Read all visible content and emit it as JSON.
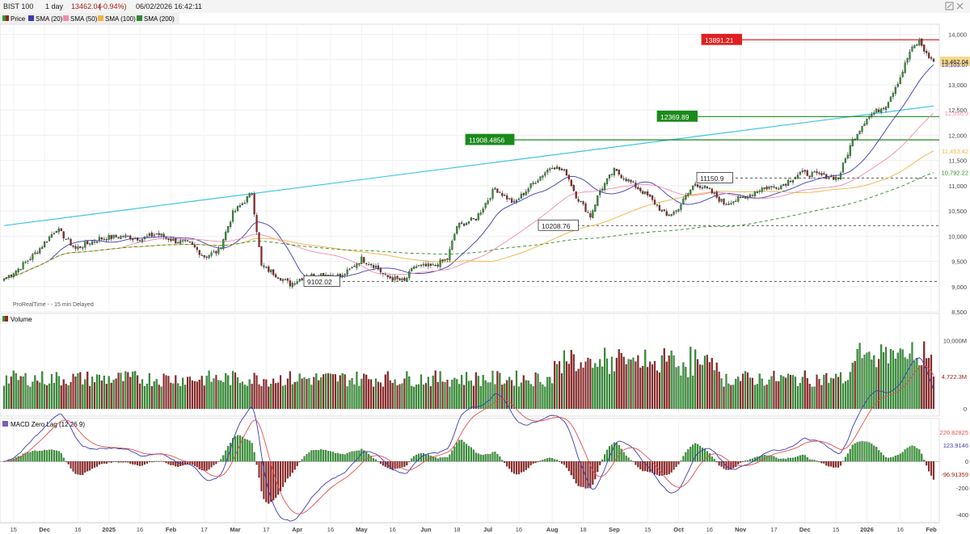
{
  "header": {
    "instrument": "BIST 100",
    "interval": "1 day",
    "last": "13462.04",
    "change": "(-0.94%)",
    "datetime": "06/02/2026 16:42:11"
  },
  "colors": {
    "up": "#2ca02c",
    "down": "#a11d1d",
    "sma20": "#3b3bb3",
    "sma50": "#f08cab",
    "sma100": "#f5b142",
    "sma200": "#2a8a2a",
    "trendline": "#3fc4e3",
    "resistance": "#e02020",
    "support": "#1a8a1a",
    "macd": "#3b3bb3",
    "signal": "#e05050"
  },
  "legend": [
    {
      "label": "Price",
      "icon": "price-swatch-icon"
    },
    {
      "label": "SMA (20)",
      "icon": "sma20-swatch-icon"
    },
    {
      "label": "SMA (50)",
      "icon": "sma50-swatch-icon"
    },
    {
      "label": "SMA (100)",
      "icon": "sma100-swatch-icon"
    },
    {
      "label": "SMA (200)",
      "icon": "sma200-swatch-icon"
    }
  ],
  "watermark": "ProRealTime -  - 15 min Delayed",
  "volume_panel": {
    "title": "Volume"
  },
  "macd_panel": {
    "title": "MACD Zero Lag (12 26 9)"
  },
  "chart_data": [
    {
      "type": "candlestick",
      "panel": "price",
      "ylim": [
        8500,
        14200
      ],
      "y_ticks": [
        "14,000",
        "13,500",
        "13,000",
        "12,500",
        "12,000",
        "11,500",
        "11,000",
        "10,500",
        "10,000",
        "9,500",
        "9,000",
        "8,500"
      ],
      "x_ticks": [
        "15",
        "Dec",
        "16",
        "2025",
        "16",
        "Feb",
        "17",
        "Mar",
        "17",
        "Apr",
        "16",
        "May",
        "16",
        "Jun",
        "18",
        "Jul",
        "16",
        "Aug",
        "18",
        "Sep",
        "15",
        "Oct",
        "16",
        "Nov",
        "17",
        "Dec",
        "15",
        "2026",
        "16",
        "Feb"
      ],
      "close_anchors": [
        [
          0,
          9150
        ],
        [
          6,
          9350
        ],
        [
          14,
          9700
        ],
        [
          22,
          10150
        ],
        [
          30,
          9750
        ],
        [
          40,
          9950
        ],
        [
          50,
          10000
        ],
        [
          58,
          9950
        ],
        [
          64,
          10050
        ],
        [
          72,
          9900
        ],
        [
          78,
          9850
        ],
        [
          84,
          9600
        ],
        [
          90,
          9700
        ],
        [
          96,
          10450
        ],
        [
          103,
          10800
        ],
        [
          104,
          10850
        ],
        [
          108,
          9400
        ],
        [
          112,
          9300
        ],
        [
          120,
          9050
        ],
        [
          126,
          9200
        ],
        [
          134,
          9250
        ],
        [
          142,
          9200
        ],
        [
          150,
          9550
        ],
        [
          156,
          9400
        ],
        [
          160,
          9200
        ],
        [
          168,
          9100
        ],
        [
          172,
          9400
        ],
        [
          180,
          9400
        ],
        [
          186,
          9550
        ],
        [
          190,
          10200
        ],
        [
          198,
          10350
        ],
        [
          206,
          10950
        ],
        [
          214,
          10650
        ],
        [
          222,
          11050
        ],
        [
          230,
          11400
        ],
        [
          236,
          11250
        ],
        [
          240,
          10800
        ],
        [
          246,
          10400
        ],
        [
          250,
          10900
        ],
        [
          256,
          11300
        ],
        [
          262,
          11100
        ],
        [
          270,
          10800
        ],
        [
          278,
          10400
        ],
        [
          282,
          10500
        ],
        [
          290,
          11050
        ],
        [
          296,
          10900
        ],
        [
          302,
          10650
        ],
        [
          310,
          10750
        ],
        [
          318,
          10950
        ],
        [
          326,
          11000
        ],
        [
          334,
          11250
        ],
        [
          344,
          11200
        ],
        [
          350,
          11150
        ],
        [
          356,
          11900
        ],
        [
          362,
          12350
        ],
        [
          370,
          12600
        ],
        [
          376,
          13150
        ],
        [
          380,
          13650
        ],
        [
          384,
          13870
        ],
        [
          387,
          13600
        ],
        [
          390,
          13462.04
        ]
      ],
      "series": [
        {
          "name": "SMA (20)",
          "last": "13,103.07"
        },
        {
          "name": "SMA (50)",
          "last": "12,056.9"
        },
        {
          "name": "SMA (100)",
          "last": "11,453.42"
        },
        {
          "name": "SMA (200)",
          "last": "10,792.22"
        }
      ],
      "last_price_label": "13,462.04",
      "levels": [
        {
          "label": "13891.21",
          "value": 13891.21,
          "kind": "resistance"
        },
        {
          "label": "12369.89",
          "value": 12369.89,
          "kind": "support"
        },
        {
          "label": "11908.4856",
          "value": 11908.4856,
          "kind": "support"
        },
        {
          "label": "11150.9",
          "value": 11150.9,
          "kind": "dotted"
        },
        {
          "label": "10208.76",
          "value": 10208.76,
          "kind": "dotted"
        },
        {
          "label": "9102.02",
          "value": 9102.02,
          "kind": "dotted"
        }
      ],
      "trendline": {
        "from": [
          0,
          10210
        ],
        "to": [
          390,
          12580
        ]
      }
    },
    {
      "type": "bar",
      "panel": "volume",
      "ylim": [
        0,
        13500000
      ],
      "y_ticks": [
        "10,000M",
        "4,722.3M",
        "0"
      ],
      "last_label": "4,722.3M"
    },
    {
      "type": "bar+line",
      "panel": "macd",
      "ylim": [
        -450,
        300
      ],
      "y_ticks": [
        "220.82825",
        "123.9146",
        "0",
        "-96.91359",
        "-200",
        "-400"
      ],
      "series": [
        {
          "name": "MACD",
          "last": "123.9146"
        },
        {
          "name": "Signal",
          "last": "220.82825"
        },
        {
          "name": "Histogram",
          "last": "-96.91359"
        }
      ]
    }
  ]
}
